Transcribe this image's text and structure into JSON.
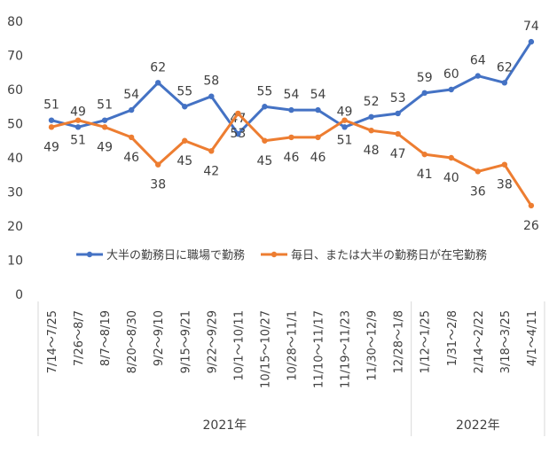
{
  "chart_data": {
    "type": "line",
    "title": "",
    "xlabel": "",
    "ylabel": "",
    "ylim": [
      0,
      80
    ],
    "yticks": [
      "0",
      "10",
      "20",
      "30",
      "40",
      "50",
      "60",
      "70",
      "80"
    ],
    "grid": false,
    "legend_position": "inside-lower-center",
    "categories": [
      "7/14～7/25",
      "7/26～8/7",
      "8/7～8/19",
      "8/20～8/30",
      "9/2～9/10",
      "9/15～9/21",
      "9/22～9/29",
      "10/1～10/11",
      "10/15～10/27",
      "10/28～11/1",
      "11/10～11/17",
      "11/19～11/23",
      "11/30～12/9",
      "12/28～1/8",
      "1/12～1/25",
      "1/31～2/8",
      "2/14～2/22",
      "3/18～3/25",
      "4/1～4/11"
    ],
    "year_groups": [
      {
        "label": "2021年",
        "start": 0,
        "end": 13
      },
      {
        "label": "2022年",
        "start": 14,
        "end": 18
      }
    ],
    "series": [
      {
        "name": "大半の勤務日に職場で勤務",
        "color": "#4472C4",
        "values": [
          51,
          49,
          51,
          54,
          62,
          55,
          58,
          47,
          55,
          54,
          54,
          49,
          52,
          53,
          59,
          60,
          64,
          62,
          74
        ],
        "label_positions": [
          "above",
          "above",
          "above",
          "above",
          "above",
          "above",
          "above",
          "above",
          "above",
          "above",
          "above",
          "above",
          "above",
          "above",
          "above",
          "above",
          "above",
          "above",
          "above"
        ]
      },
      {
        "name": "毎日、または大半の勤務日が在宅勤務",
        "color": "#ED7D31",
        "values": [
          49,
          51,
          49,
          46,
          38,
          45,
          42,
          53,
          45,
          46,
          46,
          51,
          48,
          47,
          41,
          40,
          36,
          38,
          26
        ],
        "label_positions": [
          "below",
          "below",
          "below",
          "below",
          "below",
          "below",
          "below",
          "below",
          "below",
          "below",
          "below",
          "below",
          "below",
          "below",
          "below",
          "below",
          "below",
          "below",
          "below"
        ]
      }
    ]
  }
}
